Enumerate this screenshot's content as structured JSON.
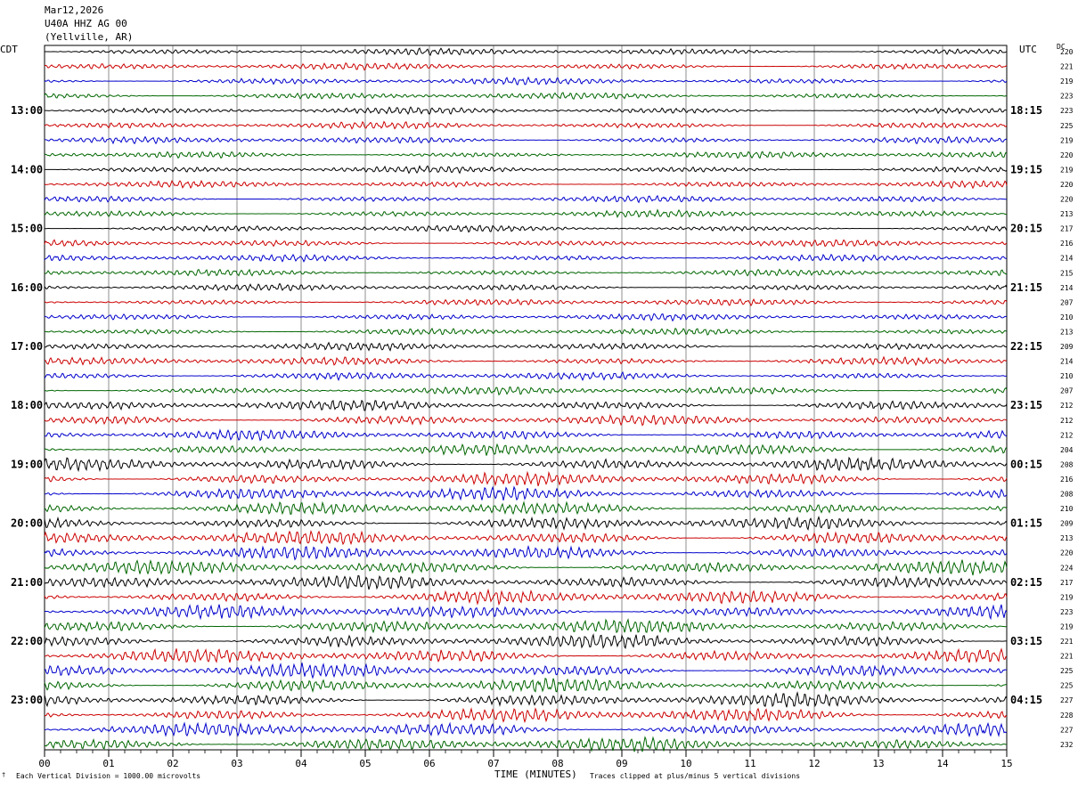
{
  "header": {
    "date": "Mar12,2026",
    "station": "U40A HHZ AG 00",
    "location": "(Yellville, AR)"
  },
  "left_timezone": "CDT",
  "right_timezone": "UTC",
  "dc_label": "DC",
  "footer": {
    "scale_note": "Each Vertical Division = 1000.00 microvolts",
    "clip_note": "Traces clipped at plus/minus 5 vertical divisions",
    "stamp": "†"
  },
  "colors": {
    "trace_cycle": [
      "#000000",
      "#cc0000",
      "#0000cc",
      "#006600"
    ],
    "grid": "#000000"
  },
  "chart_data": {
    "type": "line",
    "title": "",
    "xlabel": "TIME (MINUTES)",
    "xlim": [
      0,
      15
    ],
    "x_ticks": [
      "00",
      "01",
      "02",
      "03",
      "04",
      "05",
      "06",
      "07",
      "08",
      "09",
      "10",
      "11",
      "12",
      "13",
      "14",
      "15"
    ],
    "left_hour_labels": [
      "13:00",
      "14:00",
      "15:00",
      "16:00",
      "17:00",
      "18:00",
      "19:00",
      "20:00",
      "21:00",
      "22:00",
      "23:00"
    ],
    "right_hour_labels": [
      "18:15",
      "19:15",
      "20:15",
      "21:15",
      "22:15",
      "23:15",
      "00:15",
      "01:15",
      "02:15",
      "03:15",
      "04:15"
    ],
    "trace_count": 48,
    "trace_dc_offsets": [
      "220",
      "221",
      "219",
      "223",
      "223",
      "225",
      "219",
      "220",
      "219",
      "220",
      "220",
      "213",
      "217",
      "216",
      "214",
      "215",
      "214",
      "207",
      "210",
      "213",
      "209",
      "214",
      "210",
      "207",
      "212",
      "212",
      "212",
      "204",
      "208",
      "216",
      "208",
      "210",
      "209",
      "213",
      "220",
      "224",
      "217",
      "219",
      "223",
      "219",
      "221",
      "221",
      "225",
      "225",
      "227",
      "228",
      "227",
      "232"
    ],
    "trace_amplitude_divisions": [
      0.3,
      0.3,
      0.3,
      0.3,
      0.3,
      0.3,
      0.3,
      0.3,
      0.3,
      0.3,
      0.3,
      0.3,
      0.3,
      0.3,
      0.3,
      0.3,
      0.3,
      0.3,
      0.3,
      0.3,
      0.35,
      0.35,
      0.35,
      0.35,
      0.45,
      0.45,
      0.45,
      0.5,
      0.55,
      0.55,
      0.55,
      0.55,
      0.55,
      0.6,
      0.6,
      0.6,
      0.6,
      0.6,
      0.6,
      0.6,
      0.6,
      0.6,
      0.6,
      0.6,
      0.6,
      0.6,
      0.6,
      0.6
    ],
    "grid": true,
    "legend": "none"
  }
}
